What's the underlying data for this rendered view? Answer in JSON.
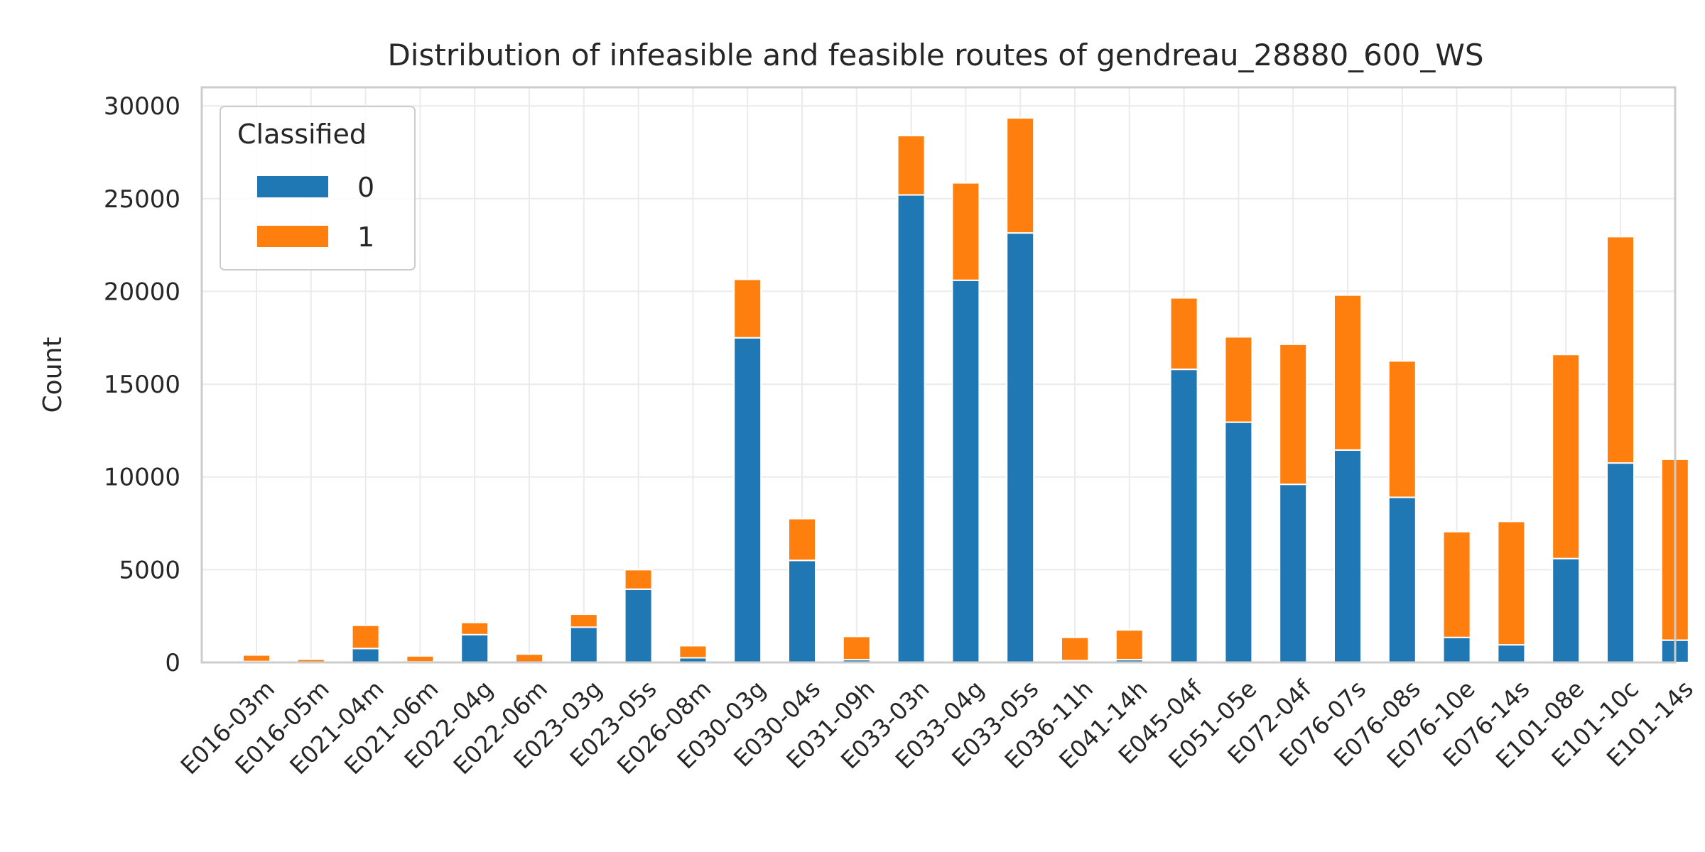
{
  "chart_data": {
    "type": "bar",
    "stacked": true,
    "title": "Distribution of infeasible and feasible routes of gendreau_28880_600_WS",
    "xlabel": "",
    "ylabel": "Count",
    "ylim": [
      0,
      31000
    ],
    "yticks": [
      0,
      5000,
      10000,
      15000,
      20000,
      25000,
      30000
    ],
    "ytick_labels": [
      "0",
      "5000",
      "10000",
      "15000",
      "20000",
      "25000",
      "30000"
    ],
    "grid": true,
    "legend": {
      "title": "Classified",
      "placement": "top-left"
    },
    "categories": [
      "E016-03m",
      "E016-05m",
      "E021-04m",
      "E021-06m",
      "E022-04g",
      "E022-06m",
      "E023-03g",
      "E023-05s",
      "E026-08m",
      "E030-03g",
      "E030-04s",
      "E031-09h",
      "E033-03n",
      "E033-04g",
      "E033-05s",
      "E036-11h",
      "E041-14h",
      "E045-04f",
      "E051-05e",
      "E072-04f",
      "E076-07s",
      "E076-08s",
      "E076-10e",
      "E076-14s",
      "E101-08e",
      "E101-10c",
      "E101-14s"
    ],
    "series": [
      {
        "name": "0",
        "color": "#1f77b4",
        "values": [
          50,
          20,
          750,
          30,
          1500,
          20,
          1900,
          3950,
          250,
          17500,
          5500,
          150,
          25200,
          20600,
          23150,
          100,
          150,
          15800,
          12950,
          9600,
          11450,
          8900,
          1350,
          950,
          5600,
          10750,
          1200
        ]
      },
      {
        "name": "1",
        "color": "#ff7f0e",
        "values": [
          350,
          150,
          1250,
          320,
          650,
          430,
          700,
          1050,
          650,
          3150,
          2250,
          1250,
          3200,
          5250,
          6200,
          1250,
          1600,
          3850,
          4600,
          7550,
          8350,
          7350,
          5700,
          6650,
          11000,
          12200,
          9750
        ]
      }
    ]
  }
}
